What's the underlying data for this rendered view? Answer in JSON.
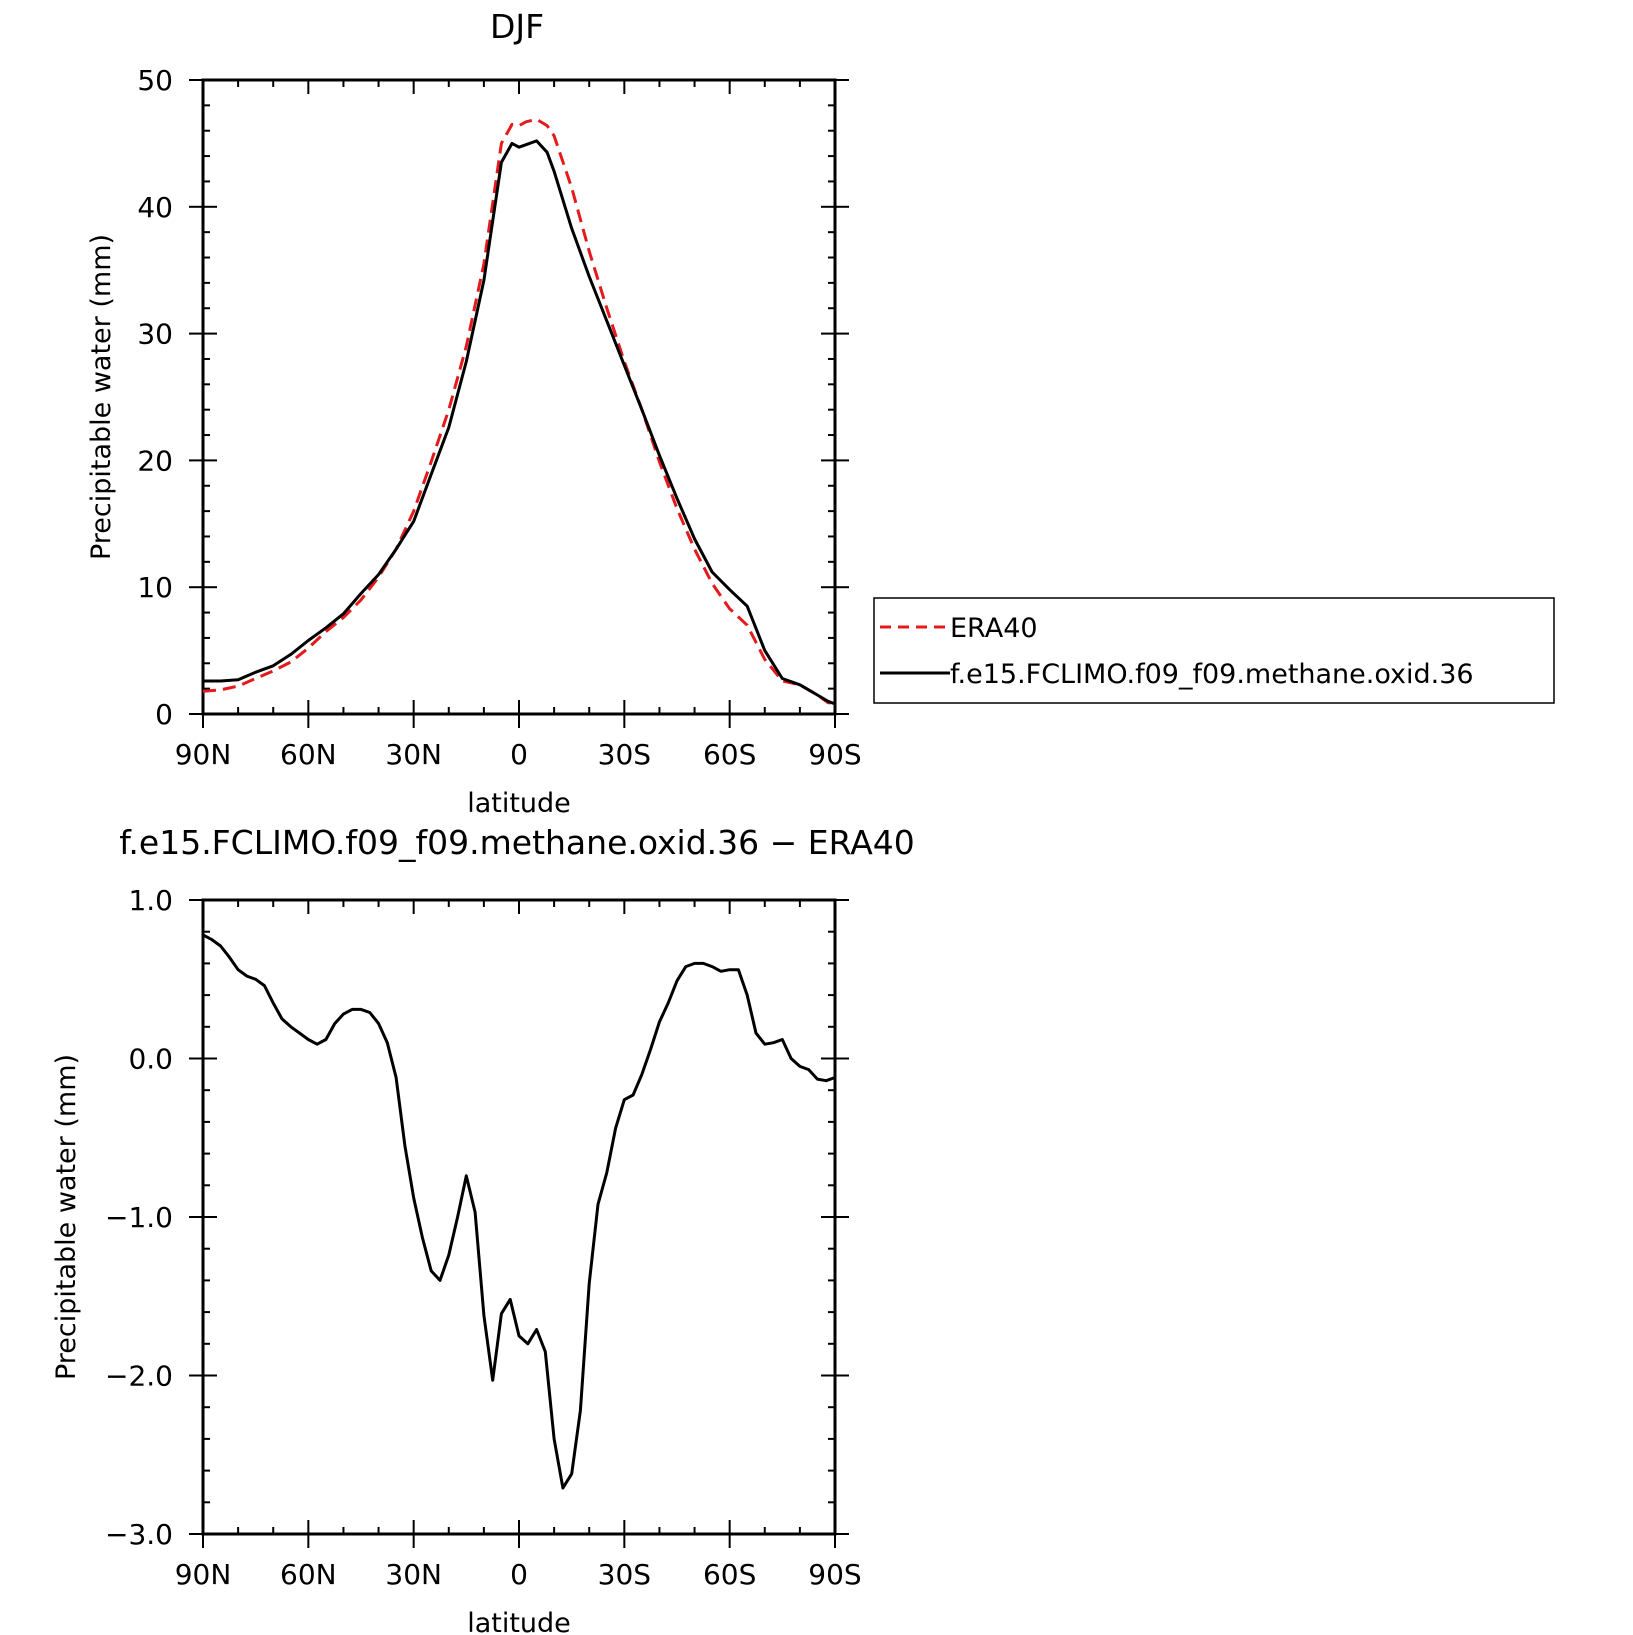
{
  "chart_data": [
    {
      "type": "line",
      "title": "DJF",
      "xlabel": "latitude",
      "ylabel": "Precipitable water (mm)",
      "xlim": [
        90,
        -90
      ],
      "ylim": [
        0,
        50
      ],
      "x_ticks": [
        90,
        60,
        30,
        0,
        -30,
        -60,
        -90
      ],
      "x_tick_labels": [
        "90N",
        "60N",
        "30N",
        "0",
        "30S",
        "60S",
        "90S"
      ],
      "y_ticks": [
        0,
        10,
        20,
        30,
        40,
        50
      ],
      "y_tick_labels": [
        "0",
        "10",
        "20",
        "30",
        "40",
        "50"
      ],
      "legend_position": "right, outside plot",
      "series": [
        {
          "name": "ERA40",
          "color": "#e41a1c",
          "dash": "dashed",
          "x": [
            90,
            85,
            80,
            75,
            70,
            65,
            60,
            55,
            50,
            45,
            40,
            35,
            30,
            25,
            20,
            15,
            10,
            5,
            2,
            0,
            -2,
            -5,
            -8,
            -10,
            -15,
            -20,
            -25,
            -30,
            -35,
            -40,
            -45,
            -50,
            -55,
            -60,
            -65,
            -70,
            -75,
            -80,
            -85,
            -88,
            -90
          ],
          "y": [
            1.8,
            1.9,
            2.2,
            2.8,
            3.4,
            4.1,
            5.2,
            6.5,
            7.6,
            9.0,
            10.8,
            13.0,
            16.0,
            19.9,
            24.0,
            29.0,
            35.5,
            45.0,
            46.5,
            46.4,
            46.7,
            46.9,
            46.4,
            45.6,
            41.5,
            36.5,
            32.0,
            27.8,
            24.0,
            19.9,
            16.2,
            13.0,
            10.3,
            8.3,
            7.0,
            4.3,
            2.6,
            2.3,
            1.5,
            0.9,
            0.8
          ]
        },
        {
          "name": "f.e15.FCLIMO.f09_f09.methane.oxid.36",
          "color": "#000000",
          "dash": "solid",
          "x": [
            90,
            85,
            80,
            75,
            70,
            65,
            60,
            55,
            50,
            45,
            40,
            35,
            30,
            25,
            20,
            15,
            10,
            5,
            2,
            0,
            -2,
            -5,
            -8,
            -10,
            -15,
            -20,
            -25,
            -30,
            -35,
            -40,
            -45,
            -50,
            -55,
            -60,
            -65,
            -70,
            -75,
            -80,
            -85,
            -88,
            -90
          ],
          "y": [
            2.6,
            2.6,
            2.7,
            3.3,
            3.8,
            4.7,
            5.8,
            6.8,
            7.9,
            9.5,
            11.0,
            13.0,
            15.2,
            18.9,
            22.6,
            27.8,
            34.2,
            43.5,
            45.0,
            44.7,
            44.9,
            45.2,
            44.3,
            42.8,
            38.3,
            34.5,
            31.0,
            27.5,
            24.0,
            20.4,
            17.0,
            13.8,
            11.2,
            9.8,
            8.5,
            5.0,
            2.8,
            2.3,
            1.5,
            1.0,
            0.8
          ]
        }
      ]
    },
    {
      "type": "line",
      "title": "f.e15.FCLIMO.f09_f09.methane.oxid.36 − ERA40",
      "xlabel": "latitude",
      "ylabel": "Precipitable water (mm)",
      "xlim": [
        90,
        -90
      ],
      "ylim": [
        -3.0,
        1.0
      ],
      "x_ticks": [
        90,
        60,
        30,
        0,
        -30,
        -60,
        -90
      ],
      "x_tick_labels": [
        "90N",
        "60N",
        "30N",
        "0",
        "30S",
        "60S",
        "90S"
      ],
      "y_ticks": [
        -3,
        -2,
        -1,
        0,
        1
      ],
      "y_tick_labels": [
        "−3.0",
        "−2.0",
        "−1.0",
        "0.0",
        "1.0"
      ],
      "series": [
        {
          "color": "#000000",
          "dash": "solid",
          "x": [
            90,
            87.5,
            85,
            82.5,
            80,
            77.5,
            75,
            72.5,
            70,
            67.5,
            65,
            62.5,
            60,
            57.5,
            55,
            52.5,
            50,
            47.5,
            45,
            42.5,
            40,
            37.5,
            35,
            32.5,
            30,
            27.5,
            25,
            22.5,
            20,
            17.5,
            15,
            12.5,
            10,
            7.5,
            5,
            2.5,
            0,
            -2.5,
            -5,
            -7.5,
            -10,
            -12.5,
            -15,
            -17.5,
            -20,
            -22.5,
            -25,
            -27.5,
            -30,
            -32.5,
            -35,
            -37.5,
            -40,
            -42.5,
            -45,
            -47.5,
            -50,
            -52.5,
            -55,
            -57.5,
            -60,
            -62.5,
            -65,
            -67.5,
            -70,
            -72.5,
            -75,
            -77.5,
            -80,
            -82.5,
            -85,
            -87.5,
            -90
          ],
          "y": [
            0.78,
            0.75,
            0.71,
            0.64,
            0.56,
            0.52,
            0.5,
            0.46,
            0.35,
            0.25,
            0.2,
            0.16,
            0.12,
            0.09,
            0.12,
            0.22,
            0.28,
            0.31,
            0.31,
            0.29,
            0.22,
            0.1,
            -0.12,
            -0.55,
            -0.88,
            -1.13,
            -1.34,
            -1.4,
            -1.24,
            -1.0,
            -0.74,
            -0.97,
            -1.62,
            -2.03,
            -1.61,
            -1.52,
            -1.75,
            -1.8,
            -1.71,
            -1.85,
            -2.4,
            -2.71,
            -2.62,
            -2.22,
            -1.42,
            -0.92,
            -0.72,
            -0.44,
            -0.26,
            -0.23,
            -0.1,
            0.06,
            0.23,
            0.35,
            0.49,
            0.58,
            0.6,
            0.6,
            0.58,
            0.55,
            0.56,
            0.56,
            0.4,
            0.16,
            0.09,
            0.1,
            0.12,
            0.0,
            -0.05,
            -0.07,
            -0.13,
            -0.14,
            -0.12
          ]
        }
      ]
    }
  ]
}
